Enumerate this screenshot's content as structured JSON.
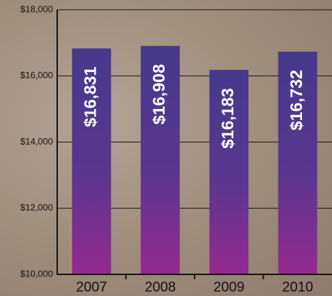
{
  "chart_data": {
    "type": "bar",
    "categories": [
      "2007",
      "2008",
      "2009",
      "2010"
    ],
    "values": [
      16831,
      16908,
      16183,
      16732
    ],
    "value_labels": [
      "$16,831",
      "$16,908",
      "$16,183",
      "$16,732"
    ],
    "color": "#4a3b8e",
    "ylim": [
      10000,
      18000
    ],
    "yticks": [
      {
        "value": 10000,
        "label": "$10,000"
      },
      {
        "value": 12000,
        "label": "$12,000"
      },
      {
        "value": 14000,
        "label": "$14,000"
      },
      {
        "value": 16000,
        "label": "$16,000"
      },
      {
        "value": 18000,
        "label": "$18,000"
      }
    ],
    "grid": true
  }
}
